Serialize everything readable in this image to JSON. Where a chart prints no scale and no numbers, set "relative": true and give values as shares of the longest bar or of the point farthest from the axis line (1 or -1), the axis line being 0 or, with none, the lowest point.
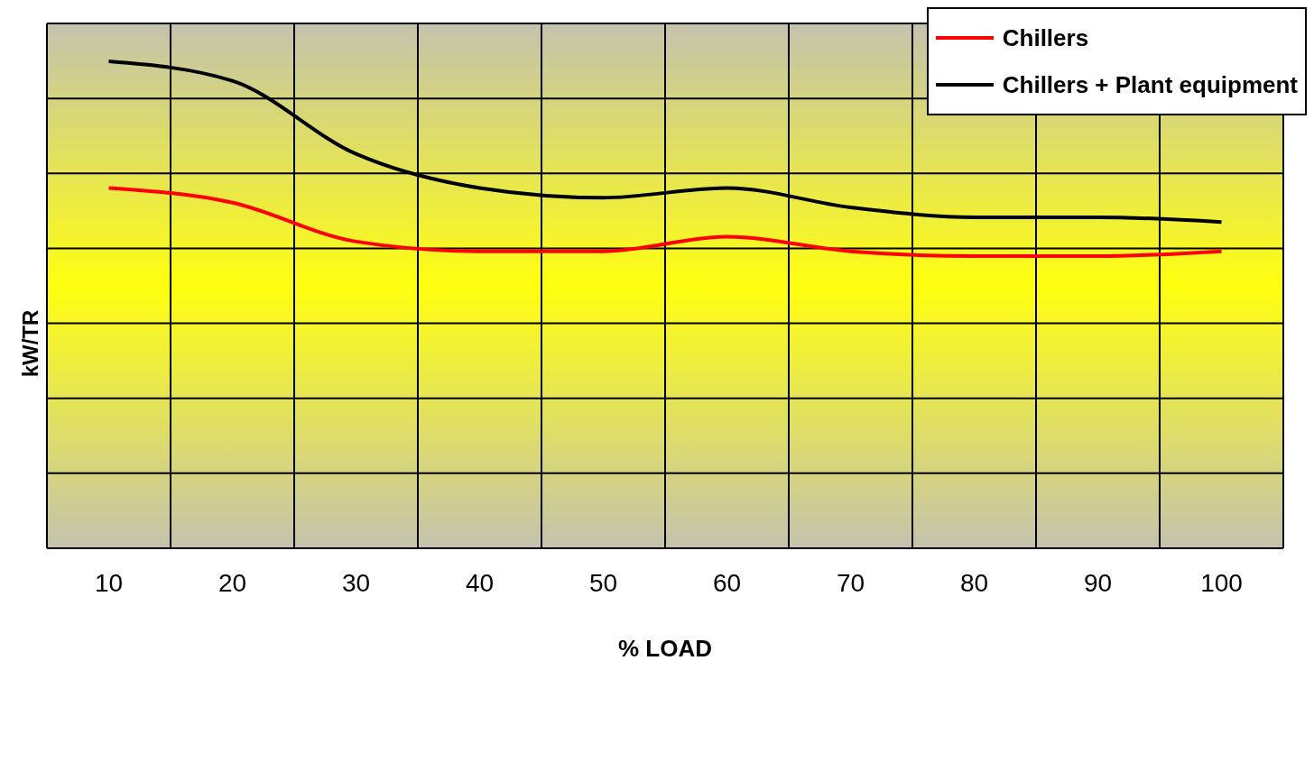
{
  "chart_data": {
    "type": "line",
    "xlabel": "% LOAD",
    "ylabel": "kW/TR",
    "relative": true,
    "grid": true,
    "legend": "top right",
    "marker": "none",
    "line_style": "solid",
    "categories": [
      "10",
      "20",
      "30",
      "40",
      "50",
      "60",
      "70",
      "80",
      "90",
      "100"
    ],
    "series": [
      {
        "name": "Chillers",
        "color": "#ff0000",
        "values": [
          0.74,
          0.71,
          0.63,
          0.61,
          0.61,
          0.64,
          0.61,
          0.6,
          0.6,
          0.61
        ]
      },
      {
        "name": "Chillers + Plant equipment",
        "color": "#000000",
        "values": [
          1.0,
          0.96,
          0.81,
          0.74,
          0.72,
          0.74,
          0.7,
          0.68,
          0.68,
          0.67
        ]
      }
    ]
  }
}
